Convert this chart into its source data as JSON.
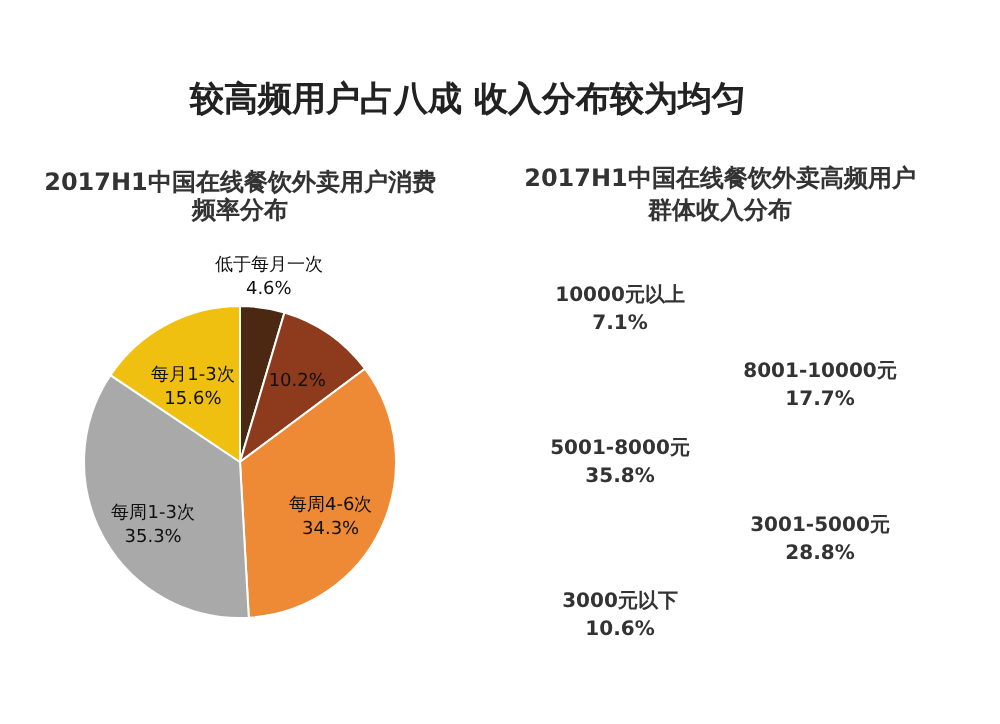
{
  "chart_data": [
    {
      "type": "pie",
      "title": "2017H1中国在线餐饮外卖用户消费频率分布",
      "annotations": [
        "较高频用户占八成 收入分布较为均匀"
      ],
      "categories": [
        "低于每月一次",
        null,
        "每周4-6次",
        "每周1-3次",
        "每月1-3次"
      ],
      "values": [
        4.6,
        10.2,
        34.3,
        35.3,
        15.6
      ],
      "value_labels": [
        "4.6%",
        "10.2%",
        "34.3%",
        "35.3%",
        "15.6%"
      ],
      "colors": [
        "#4a2812",
        "#8e3a1c",
        "#ee8a35",
        "#a9a9a9",
        "#f0c010"
      ]
    },
    {
      "type": "other",
      "title": "2017H1中国在线餐饮外卖高频用户群体收入分布",
      "categories": [
        "10000元以上",
        "8001-10000元",
        "5001-8000元",
        "3001-5000元",
        "3000元以下"
      ],
      "values": [
        7.1,
        17.7,
        35.8,
        28.8,
        10.6
      ],
      "value_labels": [
        "7.1%",
        "17.7%",
        "35.8%",
        "28.8%",
        "10.6%"
      ]
    }
  ]
}
